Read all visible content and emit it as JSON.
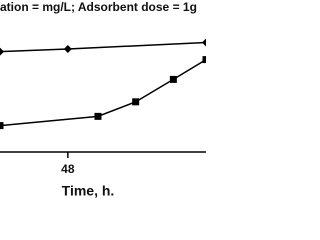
{
  "chart_data": {
    "type": "line",
    "title": "ation = mg/L; Adsorbent dose = 1g",
    "x_label": "Time, h.",
    "xlim": [
      21,
      103
    ],
    "xticks": [
      48
    ],
    "ylim": [
      0,
      100
    ],
    "series": [
      {
        "color": "#000000",
        "marker": "diamond",
        "x": [
          21,
          48,
          103
        ],
        "values": [
          76,
          78,
          83
        ]
      },
      {
        "color": "#000000",
        "marker": "square",
        "x": [
          21,
          60,
          75,
          90,
          103
        ],
        "values": [
          20,
          27,
          38,
          55,
          70
        ]
      }
    ]
  }
}
